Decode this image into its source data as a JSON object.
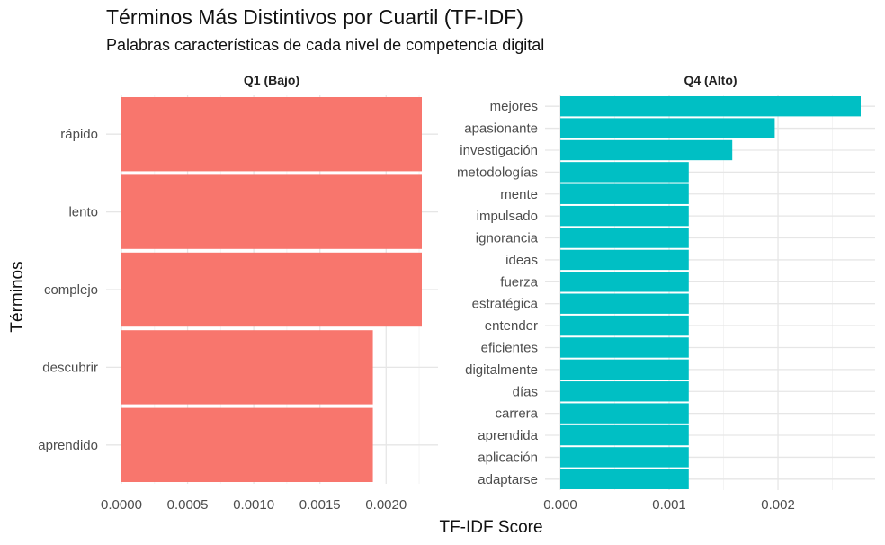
{
  "title": "Términos Más Distintivos por Cuartil (TF-IDF)",
  "subtitle": "Palabras características de cada nivel de competencia digital",
  "xlabel": "TF-IDF Score",
  "ylabel": "Términos",
  "colors": {
    "Q1 (Bajo)": "#F8766D",
    "Q4 (Alto)": "#00BFC4"
  },
  "chart_data": [
    {
      "type": "bar",
      "orientation": "horizontal",
      "panel": "Q1 (Bajo)",
      "categories": [
        "rápido",
        "lento",
        "complejo",
        "descubrir",
        "aprendido"
      ],
      "values": [
        0.00227,
        0.00227,
        0.00227,
        0.0019,
        0.0019
      ],
      "xlim": [
        0,
        0.00227
      ],
      "xticks": [
        0,
        0.0005,
        0.001,
        0.0015,
        0.002
      ],
      "xtick_labels": [
        "0.0000",
        "0.0005",
        "0.0010",
        "0.0015",
        "0.0020"
      ],
      "grid": true
    },
    {
      "type": "bar",
      "orientation": "horizontal",
      "panel": "Q4 (Alto)",
      "categories": [
        "mejores",
        "apasionante",
        "investigación",
        "metodologías",
        "mente",
        "impulsado",
        "ignorancia",
        "ideas",
        "fuerza",
        "estratégica",
        "entender",
        "eficientes",
        "digitalmente",
        "días",
        "carrera",
        "aprendida",
        "aplicación",
        "adaptarse"
      ],
      "values": [
        0.00276,
        0.00197,
        0.00158,
        0.00118,
        0.00118,
        0.00118,
        0.00118,
        0.00118,
        0.00118,
        0.00118,
        0.00118,
        0.00118,
        0.00118,
        0.00118,
        0.00118,
        0.00118,
        0.00118,
        0.00118
      ],
      "xlim": [
        0,
        0.00276
      ],
      "xticks": [
        0,
        0.001,
        0.002
      ],
      "xtick_labels": [
        "0.000",
        "0.001",
        "0.002"
      ],
      "grid": true
    }
  ]
}
